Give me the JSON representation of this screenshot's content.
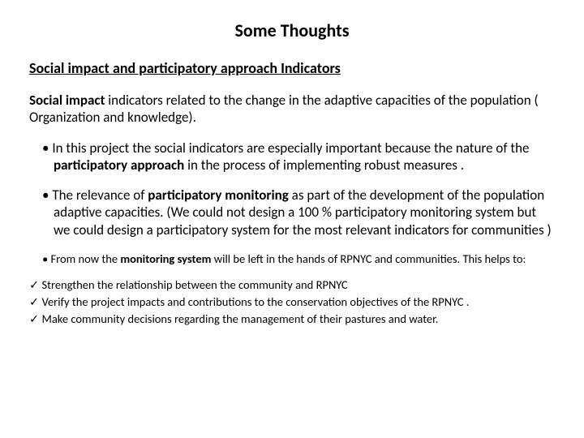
{
  "title": "Some Thoughts",
  "subtitle": "Social impact and participatory approach Indicators",
  "intro_bold": "Social impact",
  "intro_rest": " indicators related to the change in the adaptive capacities of the population ( Organization and knowledge).",
  "bullet1_a": "In this project the social indicators are especially important because the nature of the ",
  "bullet1_b": "participatory approach",
  "bullet1_c": " in the process of implementing robust measures .",
  "bullet2_a": "The relevance of ",
  "bullet2_b": "participatory monitoring",
  "bullet2_c": " as part of the development of the population adaptive capacities. (We could not design a 100 % participatory monitoring system but we could design a participatory system for the most relevant indicators for communities )",
  "bullet3_a": "From now the ",
  "bullet3_b": "monitoring system",
  "bullet3_c": " will be left in the hands of  RPNYC and communities. This helps to:",
  "check1": "Strengthen the relationship  between the community and RPNYC",
  "check2": "Verify the project impacts and contributions to the conservation objectives of the RPNYC .",
  "check3": "Make community decisions regarding the management of their pastures and water."
}
